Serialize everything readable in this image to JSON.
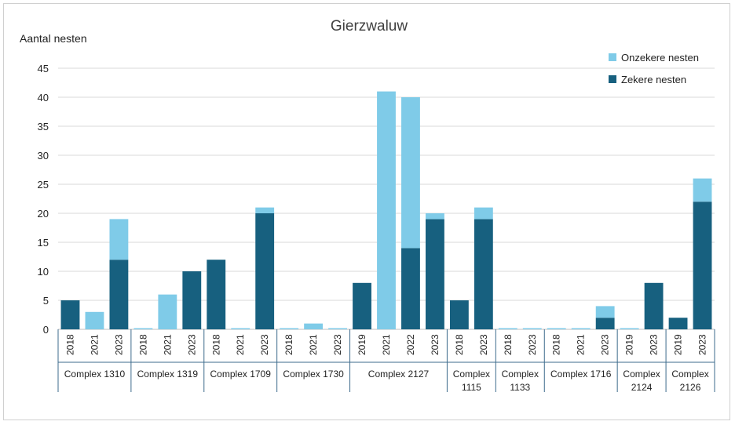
{
  "chart_data": {
    "type": "bar",
    "stacked": true,
    "title": "Gierzwaluw",
    "ylabel": "Aantal nesten",
    "xlabel": "",
    "ylim": [
      0,
      45
    ],
    "yticks": [
      0,
      5,
      10,
      15,
      20,
      25,
      30,
      35,
      40,
      45
    ],
    "grid": true,
    "legend_position": "top-right",
    "legend": [
      "Onzekere nesten",
      "Zekere nesten"
    ],
    "groups": [
      {
        "label": "Complex 1310",
        "label_lines": [
          "Complex 1310"
        ],
        "categories": [
          "2018",
          "2021",
          "2023"
        ]
      },
      {
        "label": "Complex 1319",
        "label_lines": [
          "Complex 1319"
        ],
        "categories": [
          "2018",
          "2021",
          "2023"
        ]
      },
      {
        "label": "Complex 1709",
        "label_lines": [
          "Complex 1709"
        ],
        "categories": [
          "2018",
          "2021",
          "2023"
        ]
      },
      {
        "label": "Complex 1730",
        "label_lines": [
          "Complex 1730"
        ],
        "categories": [
          "2018",
          "2021",
          "2023"
        ]
      },
      {
        "label": "Complex 2127",
        "label_lines": [
          "Complex 2127"
        ],
        "categories": [
          "2019",
          "2021",
          "2022",
          "2023"
        ]
      },
      {
        "label": "Complex 1115",
        "label_lines": [
          "Complex",
          "1115"
        ],
        "categories": [
          "2018",
          "2023"
        ]
      },
      {
        "label": "Complex 1133",
        "label_lines": [
          "Complex",
          "1133"
        ],
        "categories": [
          "2018",
          "2023"
        ]
      },
      {
        "label": "Complex 1716",
        "label_lines": [
          "Complex 1716"
        ],
        "categories": [
          "2018",
          "2021",
          "2023"
        ]
      },
      {
        "label": "Complex 2124",
        "label_lines": [
          "Complex",
          "2124"
        ],
        "categories": [
          "2019",
          "2023"
        ]
      },
      {
        "label": "Complex 2126",
        "label_lines": [
          "Complex",
          "2126"
        ],
        "categories": [
          "2019",
          "2023"
        ]
      }
    ],
    "series": [
      {
        "name": "Zekere nesten",
        "color": "#17607f",
        "values": [
          5,
          0,
          12,
          0,
          0,
          10,
          12,
          0,
          20,
          0,
          0,
          0,
          8,
          0,
          14,
          19,
          5,
          19,
          0,
          0,
          0,
          0,
          2,
          0,
          8,
          2,
          22
        ]
      },
      {
        "name": "Onzekere nesten",
        "color": "#7fcbe8",
        "values": [
          0,
          3,
          7,
          0,
          6,
          0,
          0,
          0,
          1,
          0,
          1,
          0,
          0,
          41,
          26,
          1,
          0,
          2,
          0,
          0,
          0,
          0,
          2,
          0,
          0,
          0,
          4
        ]
      }
    ]
  }
}
